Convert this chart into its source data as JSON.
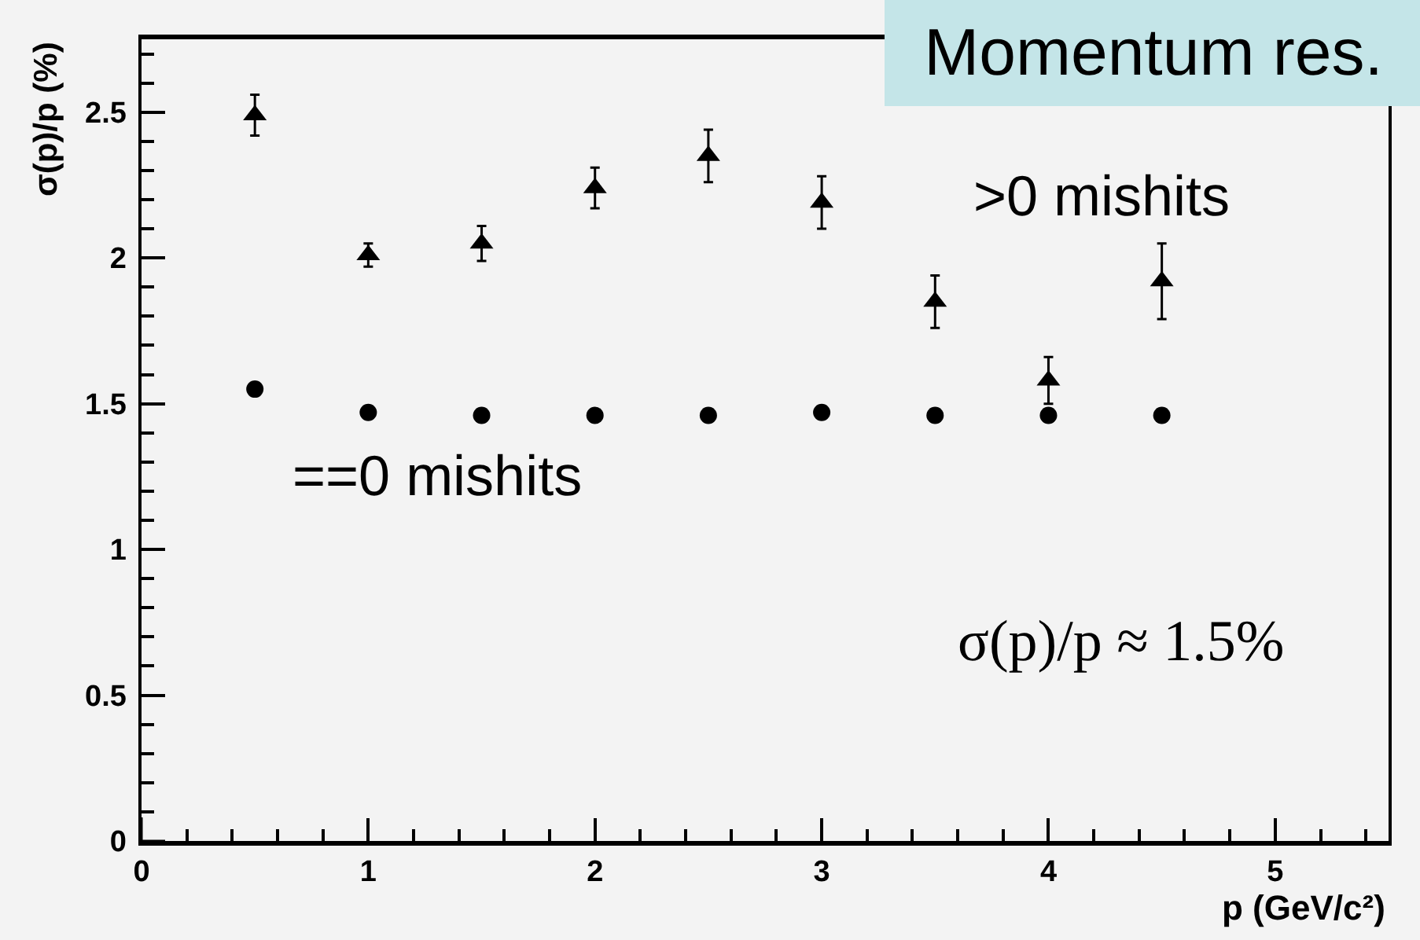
{
  "chart_data": {
    "type": "scatter",
    "title": "Momentum res.",
    "xlabel": "p (GeV/c²)",
    "ylabel": "σ(p)/p (%)",
    "annotations": [
      "σ(p)/p ≈ 1.5%"
    ],
    "x": [
      0.5,
      1,
      1.5,
      2,
      2.5,
      3,
      3.5,
      4,
      4.5
    ],
    "series": [
      {
        "name": ">0 mishits",
        "color": "#000000",
        "marker": "triangle",
        "values": [
          2.49,
          2.01,
          2.05,
          2.24,
          2.35,
          2.19,
          1.85,
          1.58,
          1.92
        ],
        "errors": [
          0.07,
          0.04,
          0.06,
          0.07,
          0.09,
          0.09,
          0.09,
          0.08,
          0.13
        ]
      },
      {
        "name": "==0 mishits",
        "color": "#000000",
        "marker": "circle",
        "values": [
          1.55,
          1.47,
          1.46,
          1.46,
          1.46,
          1.47,
          1.46,
          1.46,
          1.46
        ]
      }
    ],
    "xlim": [
      0,
      5.5
    ],
    "xticks": [
      0,
      {
        "value": 0.2,
        "label": null
      },
      {
        "value": 0.4,
        "label": null
      },
      {
        "value": 0.6,
        "label": null
      },
      {
        "value": 0.8,
        "label": null
      },
      1,
      {
        "value": 1.2,
        "label": null
      },
      {
        "value": 1.4,
        "label": null
      },
      {
        "value": 1.6,
        "label": null
      },
      {
        "value": 1.8,
        "label": null
      },
      2,
      {
        "value": 2.2,
        "label": null
      },
      {
        "value": 2.4,
        "label": null
      },
      {
        "value": 2.6,
        "label": null
      },
      {
        "value": 2.8,
        "label": null
      },
      3,
      {
        "value": 3.2,
        "label": null
      },
      {
        "value": 3.4,
        "label": null
      },
      {
        "value": 3.6,
        "label": null
      },
      {
        "value": 3.8,
        "label": null
      },
      4,
      {
        "value": 4.2,
        "label": null
      },
      {
        "value": 4.4,
        "label": null
      },
      {
        "value": 4.6,
        "label": null
      },
      {
        "value": 4.8,
        "label": null
      },
      5,
      {
        "value": 5.2,
        "label": null
      },
      {
        "value": 5.4,
        "label": null
      }
    ],
    "ylim": [
      0,
      2.75
    ],
    "yticks": [
      0,
      {
        "value": 0.1,
        "label": null
      },
      {
        "value": 0.2,
        "label": null
      },
      {
        "value": 0.3,
        "label": null
      },
      {
        "value": 0.4,
        "label": null
      },
      0.5,
      {
        "value": 0.6,
        "label": null
      },
      {
        "value": 0.7,
        "label": null
      },
      {
        "value": 0.8,
        "label": null
      },
      {
        "value": 0.9,
        "label": null
      },
      1,
      {
        "value": 1.1,
        "label": null
      },
      {
        "value": 1.2,
        "label": null
      },
      {
        "value": 1.3,
        "label": null
      },
      {
        "value": 1.4,
        "label": null
      },
      1.5,
      {
        "value": 1.6,
        "label": null
      },
      {
        "value": 1.7,
        "label": null
      },
      {
        "value": 1.8,
        "label": null
      },
      {
        "value": 1.9,
        "label": null
      },
      2,
      {
        "value": 2.1,
        "label": null
      },
      {
        "value": 2.2,
        "label": null
      },
      {
        "value": 2.3,
        "label": null
      },
      {
        "value": 2.4,
        "label": null
      },
      2.5,
      {
        "value": 2.6,
        "label": null
      },
      {
        "value": 2.7,
        "label": null
      }
    ]
  }
}
